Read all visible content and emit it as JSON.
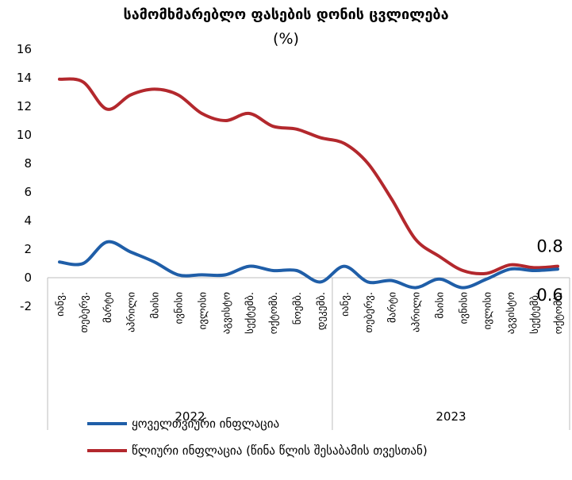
{
  "chart_data": {
    "type": "line",
    "title": "სამომხმარებლო ფასების დონის ცვლილება",
    "subtitle": "(%)",
    "ylim": [
      -2,
      16
    ],
    "y_ticks": [
      "16",
      "14",
      "12",
      "10",
      "8",
      "6",
      "4",
      "2",
      "0",
      "-2"
    ],
    "categories": [
      "იანვ.",
      "თებერვ.",
      "მარტი",
      "აპრილი",
      "მაისი",
      "ივნისი",
      "ივლისი",
      "აგვისტო",
      "სექტემბ.",
      "ოქტომბ.",
      "ნოემბ.",
      "დეკემბ.",
      "იანვ.",
      "თებერვ.",
      "მარტი",
      "აპრილი",
      "მაისი",
      "ივნისი",
      "ივლისი",
      "აგვისტო",
      "სექტემბ.",
      "ოქტომბ."
    ],
    "groups": [
      {
        "label": "2022",
        "count": 12
      },
      {
        "label": "2023",
        "count": 10
      }
    ],
    "series": [
      {
        "name": "ყოველთვიური ინფლაცია",
        "color": "#1f5ea8",
        "values": [
          1.1,
          1.0,
          2.5,
          1.8,
          1.1,
          0.2,
          0.2,
          0.2,
          0.8,
          0.5,
          0.5,
          -0.3,
          0.8,
          -0.3,
          -0.2,
          -0.7,
          -0.1,
          -0.7,
          -0.1,
          0.6,
          0.5,
          0.6
        ]
      },
      {
        "name": "წლიური ინფლაცია (წინა წლის შესაბამის თვესთან)",
        "color": "#b3282d",
        "values": [
          13.9,
          13.7,
          11.8,
          12.8,
          13.2,
          12.8,
          11.5,
          11.0,
          11.5,
          10.6,
          10.4,
          9.8,
          9.4,
          8.0,
          5.5,
          2.7,
          1.5,
          0.5,
          0.3,
          0.9,
          0.7,
          0.8
        ]
      }
    ],
    "annotations": [
      {
        "text": "0.8",
        "series": 1,
        "index": 21
      },
      {
        "text": "0.6",
        "series": 0,
        "index": 21
      }
    ],
    "grid": false,
    "legend_placement": "bottom-left"
  }
}
